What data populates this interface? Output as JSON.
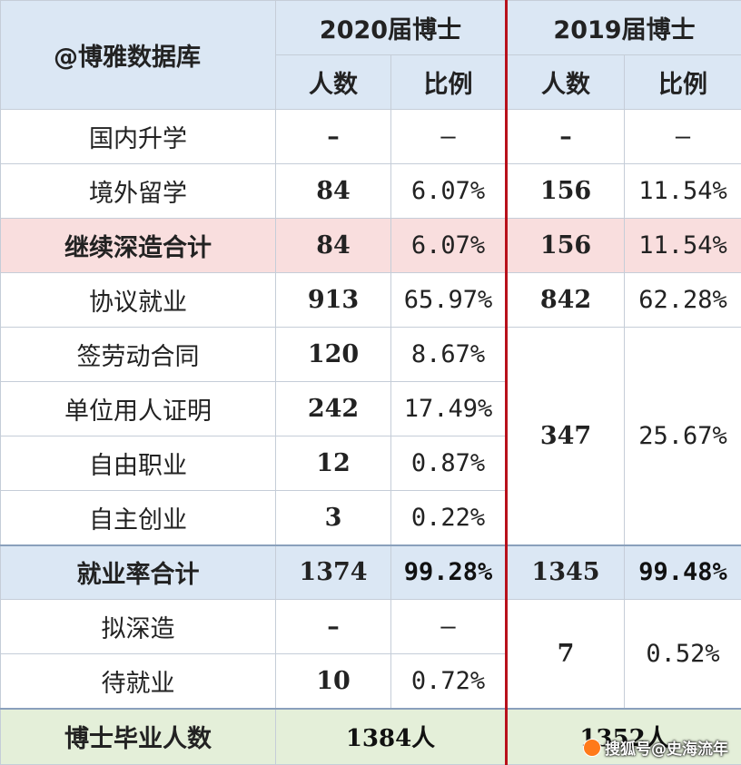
{
  "header": {
    "brand": "@博雅数据库",
    "year_2020": "2020届博士",
    "year_2019": "2019届博士",
    "col_count": "人数",
    "col_ratio": "比例"
  },
  "rows": [
    {
      "label": "国内升学",
      "c20": "–",
      "r20": "–",
      "c19": "–",
      "r19": "–"
    },
    {
      "label": "境外留学",
      "c20": "84",
      "r20": "6.07%",
      "c19": "156",
      "r19": "11.54%"
    },
    {
      "label": "继续深造合计",
      "c20": "84",
      "r20": "6.07%",
      "c19": "156",
      "r19": "11.54%"
    },
    {
      "label": "协议就业",
      "c20": "913",
      "r20": "65.97%",
      "c19": "842",
      "r19": "62.28%"
    },
    {
      "label": "签劳动合同",
      "c20": "120",
      "r20": "8.67%"
    },
    {
      "label": "单位用人证明",
      "c20": "242",
      "r20": "17.49%",
      "c19": "347",
      "r19": "25.67%"
    },
    {
      "label": "自由职业",
      "c20": "12",
      "r20": "0.87%"
    },
    {
      "label": "自主创业",
      "c20": "3",
      "r20": "0.22%"
    },
    {
      "label": "就业率合计",
      "c20": "1374",
      "r20": "99.28%",
      "c19": "1345",
      "r19": "99.48%"
    },
    {
      "label": "拟深造",
      "c20": "–",
      "r20": "–",
      "c19": "7",
      "r19": "0.52%"
    },
    {
      "label": "待就业",
      "c20": "10",
      "r20": "0.72%"
    }
  ],
  "footer": {
    "label": "博士毕业人数",
    "total_2020": "1384人",
    "total_2019": "1352人"
  },
  "watermark": {
    "text": "搜狐号@史海流年",
    "icon": "sohu-logo-icon"
  },
  "colors": {
    "header_bg": "#dbe7f4",
    "subtotal_bg": "#f9dede",
    "employment_total_bg": "#dbe7f4",
    "footer_bg": "#e4efd9",
    "number_blue": "#2a4f94",
    "year_2019_red": "#b8111b"
  }
}
